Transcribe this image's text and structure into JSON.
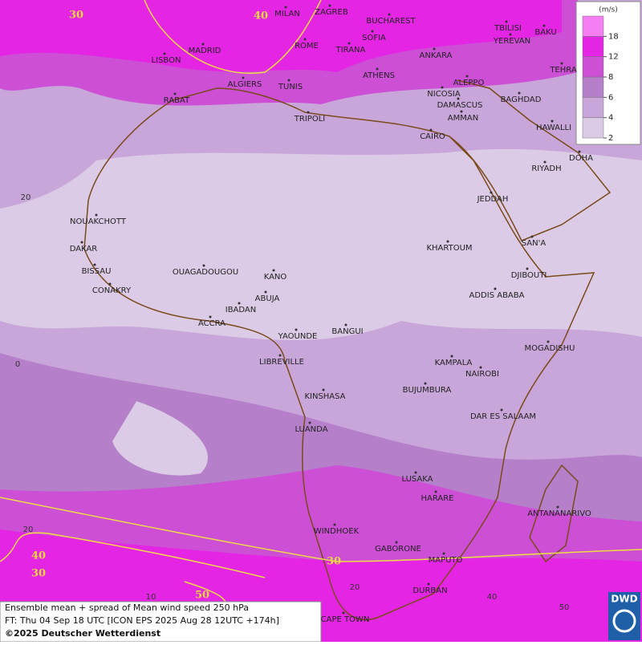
{
  "map": {
    "cities": [
      "MILAN",
      "ZAGREB",
      "BUCHAREST",
      "TBILISI",
      "BAKU",
      "MADRID",
      "ROME",
      "SOFIA",
      "YEREVAN",
      "TEHRA",
      "LISBON",
      "TIRANA",
      "ANKARA",
      "ATHENS",
      "ALGIERS",
      "TUNIS",
      "ALEPPO",
      "RABAT",
      "NICOSIA",
      "BAGHDAD",
      "DAMASCUS",
      "AMMAN",
      "TRIPOLI",
      "HAWALLI",
      "CAIRO",
      "DOHA",
      "RIYADH",
      "JEDDAH",
      "NOUAKCHOTT",
      "SAN'A",
      "DAKAR",
      "KHARTOUM",
      "BISSAU",
      "OUAGADOUGOU",
      "KANO",
      "DJIBOUTI",
      "CONAKRY",
      "ABUJA",
      "ADDIS ABABA",
      "IBADAN",
      "ACCRA",
      "BANGUI",
      "YAOUNDE",
      "MOGADISHU",
      "LIBREVILLE",
      "KAMPALA",
      "NAIROBI",
      "BUJUMBURA",
      "KINSHASA",
      "DAR ES SALAAM",
      "LUANDA",
      "LUSAKA",
      "HARARE",
      "ANTANANARIVO",
      "WINDHOEK",
      "GABORONE",
      "MAPUTO",
      "DURBAN",
      "CAPE TOWN"
    ],
    "contour_labels": [
      "30",
      "40",
      "40",
      "30",
      "30",
      "50"
    ],
    "lat_labels": [
      "20",
      "0",
      "20"
    ],
    "lon_labels": [
      "10",
      "20",
      "40",
      "50"
    ]
  },
  "legend": {
    "unit": "(m/s)",
    "ticks": [
      2,
      4,
      6,
      8,
      12,
      18
    ],
    "colors": [
      "#dccbe6",
      "#c9a6d9",
      "#b57fca",
      "#cc4fd6",
      "#e426e4",
      "#f47ef4"
    ]
  },
  "caption": {
    "line1": "Ensemble mean + spread of Mean wind speed 250 hPa",
    "line2": "FT: Thu 04 Sep 18 UTC [ICON EPS 2025 Aug 28 12UTC +174h]",
    "line3": "©2025 Deutscher Wetterdienst"
  },
  "logo": "DWD"
}
